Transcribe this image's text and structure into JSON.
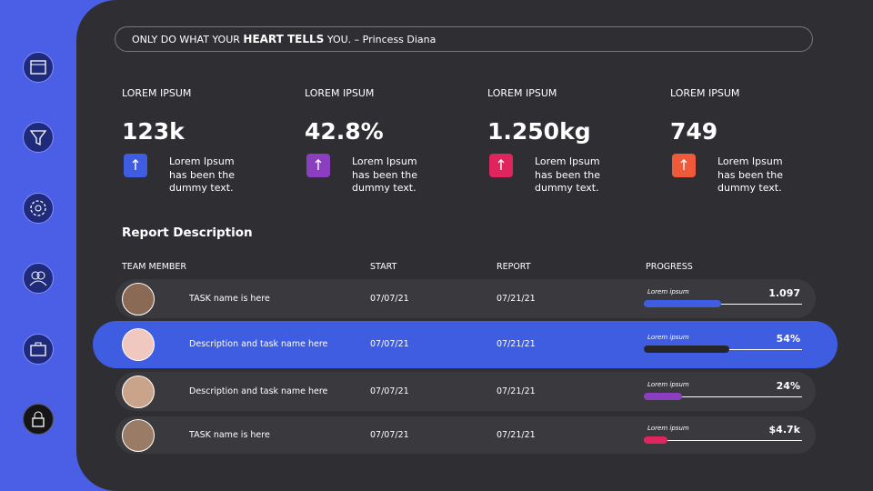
{
  "quote": {
    "lead": "ONLY DO WHAT YOUR",
    "emphasis": "HEART TELLS",
    "tail": "YOU. – Princess Diana"
  },
  "stats": [
    {
      "label": "LOREM IPSUM",
      "value": "123k",
      "description": "Lorem Ipsum has been the dummy text.",
      "color": "#3f5de0"
    },
    {
      "label": "LOREM IPSUM",
      "value": "42.8%",
      "description": "Lorem Ipsum has been the dummy text.",
      "color": "#8b3fc0"
    },
    {
      "label": "LOREM IPSUM",
      "value": "1.250kg",
      "description": "Lorem Ipsum has been the dummy text.",
      "color": "#e0245e"
    },
    {
      "label": "LOREM IPSUM",
      "value": "749",
      "description": "Lorem Ipsum has been the dummy text.",
      "color": "#f05a3a"
    }
  ],
  "report": {
    "title": "Report Description",
    "columns": [
      "TEAM MEMBER",
      "START",
      "REPORT",
      "PROGRESS"
    ],
    "rows": [
      {
        "task": "TASK name is here",
        "start": "07/07/21",
        "report": "07/21/21",
        "progress_label": "Lorem ipsum",
        "progress_text": "1.097",
        "progress": 49,
        "color": "#3f5de0"
      },
      {
        "task": "Description and task name here",
        "start": "07/07/21",
        "report": "07/21/21",
        "progress_label": "Lorem ipsum",
        "progress_text": "54%",
        "progress": 54,
        "color": "#26262a"
      },
      {
        "task": "Description and task name here",
        "start": "07/07/21",
        "report": "07/21/21",
        "progress_label": "Lorem ipsum",
        "progress_text": "24%",
        "progress": 24,
        "color": "#8b3fc0"
      },
      {
        "task": "TASK name is here",
        "start": "07/07/21",
        "report": "07/21/21",
        "progress_label": "Lorem ipsum",
        "progress_text": "$4.7k",
        "progress": 15,
        "color": "#e0245e"
      }
    ]
  }
}
